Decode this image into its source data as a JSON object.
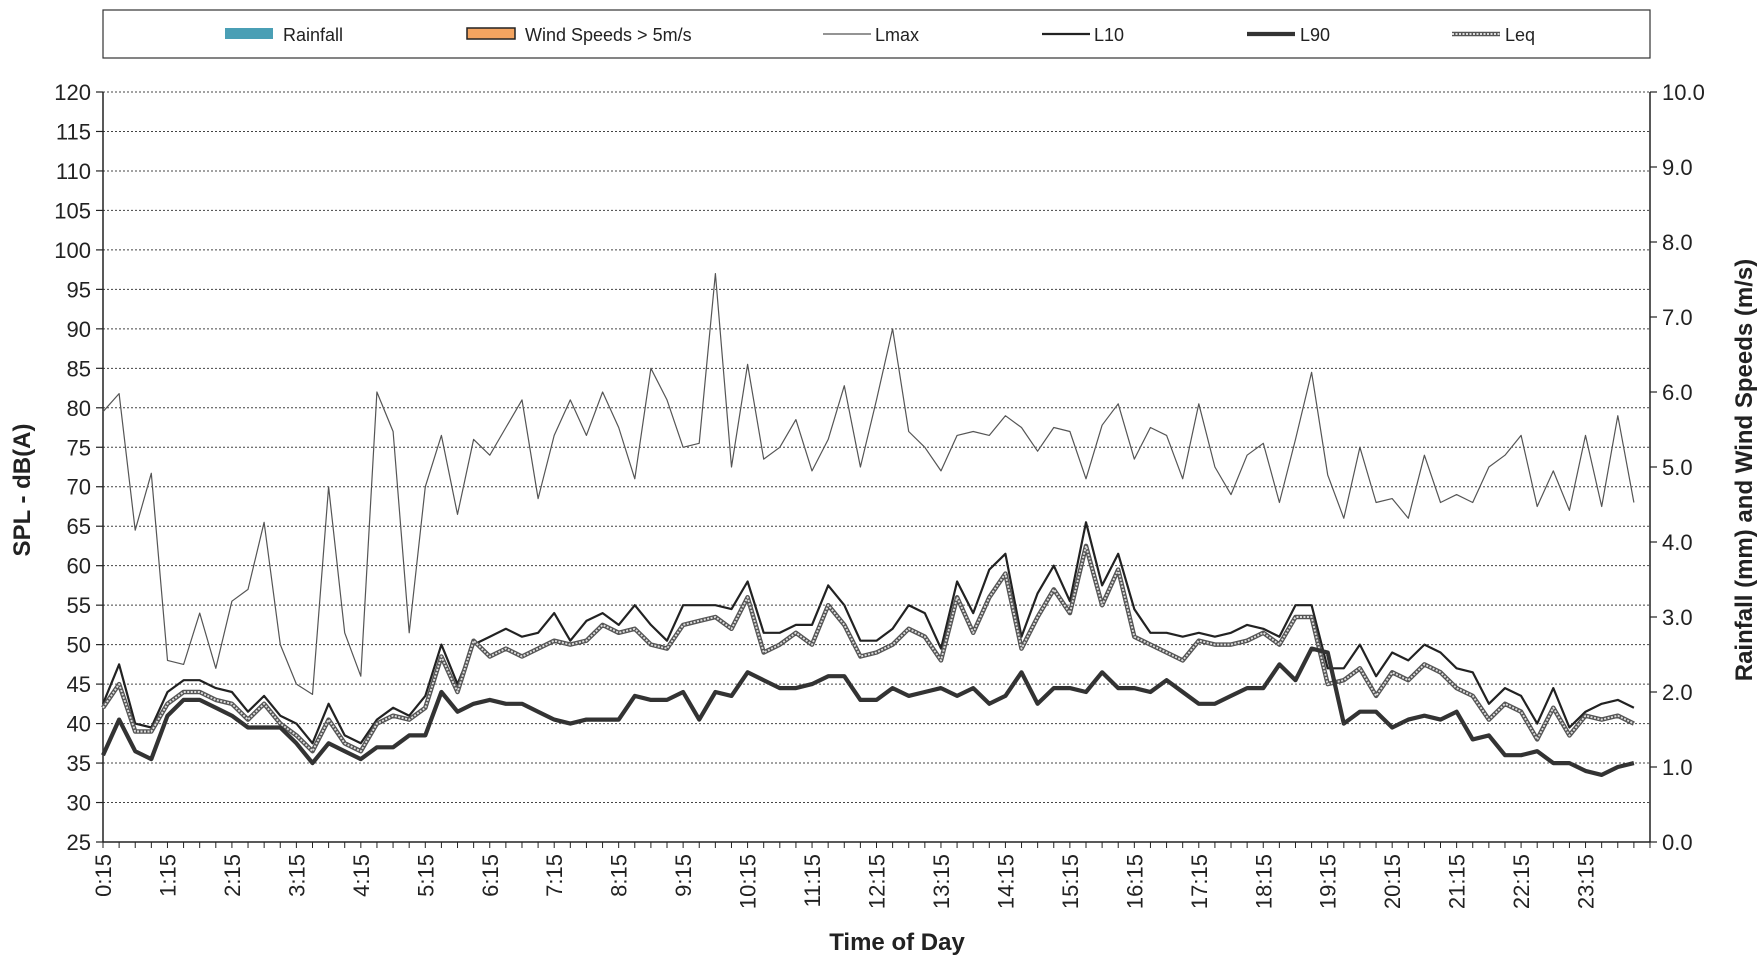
{
  "chart_data": {
    "type": "line",
    "xlabel": "Time of Day",
    "ylabel": "SPL - dB(A)",
    "y2label": "Rainfall (mm) and Wind Speeds (m/s)",
    "ylim": [
      25,
      120
    ],
    "y2lim": [
      0,
      10
    ],
    "grid": true,
    "legend_position": "top",
    "x_tick_labels": [
      "0:15",
      "1:15",
      "2:15",
      "3:15",
      "4:15",
      "5:15",
      "6:15",
      "7:15",
      "8:15",
      "9:15",
      "10:15",
      "11:15",
      "12:15",
      "13:15",
      "14:15",
      "15:15",
      "16:15",
      "17:15",
      "18:15",
      "19:15",
      "20:15",
      "21:15",
      "22:15",
      "23:15"
    ],
    "legend": [
      {
        "name": "Rainfall",
        "kind": "bar",
        "color": "#4a9fb5"
      },
      {
        "name": "Wind Speeds > 5m/s",
        "kind": "bar",
        "color": "#f4a460"
      },
      {
        "name": "Lmax",
        "kind": "line",
        "color": "#555555"
      },
      {
        "name": "L10",
        "kind": "line",
        "color": "#222222"
      },
      {
        "name": "L90",
        "kind": "line",
        "color": "#333333"
      },
      {
        "name": "Leq",
        "kind": "line",
        "color": "#888888"
      }
    ],
    "series": [
      {
        "name": "Lmax",
        "axis": "left",
        "values": [
          79.5,
          81.8,
          64.5,
          71.7,
          48.0,
          47.5,
          54.0,
          47.0,
          55.5,
          57.0,
          65.5,
          50.0,
          45.0,
          43.7,
          70.0,
          51.5,
          46.0,
          82.0,
          77.0,
          51.5,
          70.0,
          76.5,
          66.5,
          76.0,
          74.0,
          77.5,
          81.0,
          68.5,
          76.5,
          81.0,
          76.5,
          82.0,
          77.5,
          71.0,
          85.0,
          81.0,
          75.0,
          75.5,
          97.0,
          72.5,
          85.5,
          73.5,
          75.0,
          78.5,
          72.0,
          76.0,
          82.8,
          72.5,
          81.0,
          90.0,
          77.0,
          75.0,
          72.0,
          76.5,
          77.0,
          76.5,
          79.0,
          77.5,
          74.5,
          77.5,
          77.0,
          71.0,
          77.8,
          80.5,
          73.5,
          77.5,
          76.5,
          71.0,
          80.5,
          72.5,
          69.0,
          74.0,
          75.5,
          68.0,
          76.0,
          84.5,
          71.5,
          66.0,
          75.0,
          68.0,
          68.5,
          66.0,
          74.0,
          68.0,
          69.0,
          68.0,
          72.5,
          74.0,
          76.5,
          67.5,
          72.0,
          67.0,
          76.5,
          67.5,
          79.0,
          68.0
        ]
      },
      {
        "name": "L10",
        "axis": "left",
        "values": [
          42.5,
          47.5,
          40.0,
          39.5,
          44.0,
          45.5,
          45.5,
          44.5,
          44.0,
          41.5,
          43.5,
          41.0,
          40.0,
          37.5,
          42.5,
          38.5,
          37.5,
          40.5,
          42.0,
          41.0,
          43.5,
          50.0,
          45.0,
          50.0,
          51.0,
          52.0,
          51.0,
          51.5,
          54.0,
          50.5,
          53.0,
          54.0,
          52.5,
          55.0,
          52.5,
          50.5,
          55.0,
          55.0,
          55.0,
          54.5,
          58.0,
          51.5,
          51.5,
          52.5,
          52.5,
          57.5,
          55.0,
          50.5,
          50.5,
          52.0,
          55.0,
          54.0,
          49.5,
          58.0,
          54.0,
          59.5,
          61.5,
          51.0,
          56.5,
          60.0,
          55.5,
          65.5,
          57.5,
          61.5,
          54.5,
          51.5,
          51.5,
          51.0,
          51.5,
          51.0,
          51.5,
          52.5,
          52.0,
          51.0,
          55.0,
          55.0,
          47.0,
          47.0,
          50.0,
          46.0,
          49.0,
          48.0,
          50.0,
          49.0,
          47.0,
          46.5,
          42.5,
          44.5,
          43.5,
          40.0,
          44.5,
          39.5,
          41.5,
          42.5,
          43.0,
          42.0
        ]
      },
      {
        "name": "Leq",
        "axis": "left",
        "values": [
          42.0,
          45.0,
          39.0,
          39.0,
          42.5,
          44.0,
          44.0,
          43.0,
          42.5,
          40.5,
          42.5,
          40.0,
          38.5,
          36.5,
          40.5,
          37.5,
          36.5,
          40.0,
          41.0,
          40.5,
          42.0,
          48.5,
          44.0,
          50.5,
          48.5,
          49.5,
          48.5,
          49.5,
          50.5,
          50.0,
          50.5,
          52.5,
          51.5,
          52.0,
          50.0,
          49.5,
          52.5,
          53.0,
          53.5,
          52.0,
          56.0,
          49.0,
          50.0,
          51.5,
          50.0,
          55.0,
          52.5,
          48.5,
          49.0,
          50.0,
          52.0,
          51.0,
          48.0,
          56.0,
          51.5,
          56.0,
          59.0,
          49.5,
          53.5,
          57.0,
          54.0,
          62.5,
          55.0,
          59.5,
          51.0,
          50.0,
          49.0,
          48.0,
          50.5,
          50.0,
          50.0,
          50.5,
          51.5,
          50.0,
          53.5,
          53.5,
          45.0,
          45.5,
          47.0,
          43.5,
          46.5,
          45.5,
          47.5,
          46.5,
          44.5,
          43.5,
          40.5,
          42.5,
          41.5,
          38.0,
          42.0,
          38.5,
          41.0,
          40.5,
          41.0,
          40.0
        ]
      },
      {
        "name": "L90",
        "axis": "left",
        "values": [
          36.0,
          40.5,
          36.5,
          35.5,
          41.0,
          43.0,
          43.0,
          42.0,
          41.0,
          39.5,
          39.5,
          39.5,
          37.5,
          35.0,
          37.5,
          36.5,
          35.5,
          37.0,
          37.0,
          38.5,
          38.5,
          44.0,
          41.5,
          42.5,
          43.0,
          42.5,
          42.5,
          41.5,
          40.5,
          40.0,
          40.5,
          40.5,
          40.5,
          43.5,
          43.0,
          43.0,
          44.0,
          40.5,
          44.0,
          43.5,
          46.5,
          45.5,
          44.5,
          44.5,
          45.0,
          46.0,
          46.0,
          43.0,
          43.0,
          44.5,
          43.5,
          44.0,
          44.5,
          43.5,
          44.5,
          42.5,
          43.5,
          46.5,
          42.5,
          44.5,
          44.5,
          44.0,
          46.5,
          44.5,
          44.5,
          44.0,
          45.5,
          44.0,
          42.5,
          42.5,
          43.5,
          44.5,
          44.5,
          47.5,
          45.5,
          49.5,
          49.0,
          40.0,
          41.5,
          41.5,
          39.5,
          40.5,
          41.0,
          40.5,
          41.5,
          38.0,
          38.5,
          36.0,
          36.0,
          36.5,
          35.0,
          35.0,
          34.0,
          33.5,
          34.5,
          35.0
        ]
      }
    ],
    "series_style": {
      "Lmax": {
        "width": 1.2,
        "color": "#555555"
      },
      "L10": {
        "width": 2.2,
        "color": "#222222"
      },
      "L90": {
        "width": 4.2,
        "color": "#333333"
      },
      "Leq": {
        "width": 4.5,
        "color": "#555555",
        "inner": "#dddddd"
      }
    }
  }
}
